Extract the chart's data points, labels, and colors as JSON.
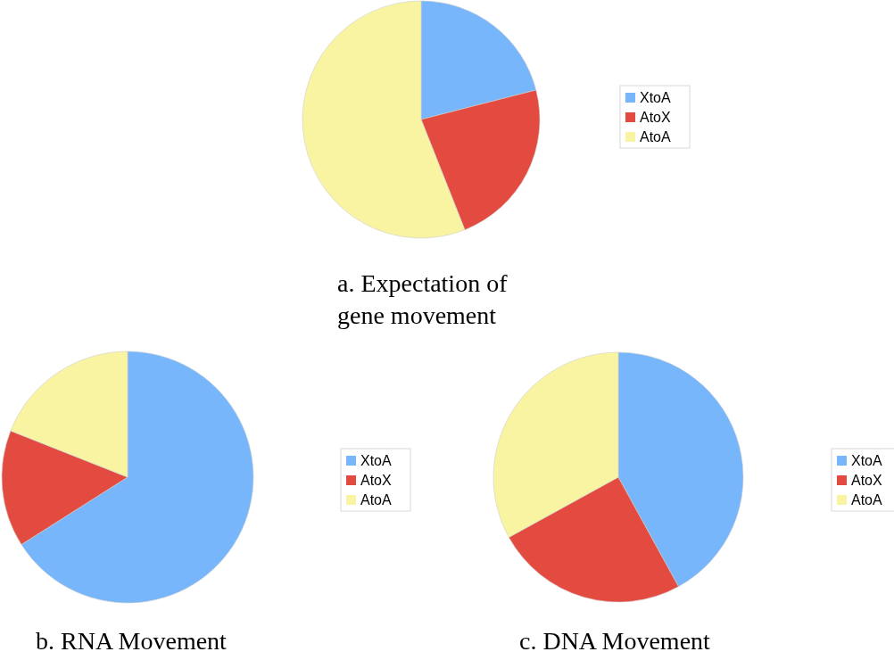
{
  "chart_data": [
    {
      "type": "pie",
      "title": "a. Expectation of gene movement",
      "categories": [
        "XtoA",
        "AtoX",
        "AtoA"
      ],
      "values": [
        21,
        23,
        56
      ],
      "colors": [
        "#78b6fb",
        "#e34b40",
        "#f9f4a1"
      ],
      "legend": "right"
    },
    {
      "type": "pie",
      "title": "b. RNA Movement",
      "categories": [
        "XtoA",
        "AtoX",
        "AtoA"
      ],
      "values": [
        66,
        15,
        19
      ],
      "colors": [
        "#78b6fb",
        "#e34b40",
        "#f9f4a1"
      ],
      "legend": "right"
    },
    {
      "type": "pie",
      "title": "c. DNA Movement",
      "categories": [
        "XtoA",
        "AtoX",
        "AtoA"
      ],
      "values": [
        42,
        25,
        33
      ],
      "colors": [
        "#78b6fb",
        "#e34b40",
        "#f9f4a1"
      ],
      "legend": "right"
    }
  ]
}
